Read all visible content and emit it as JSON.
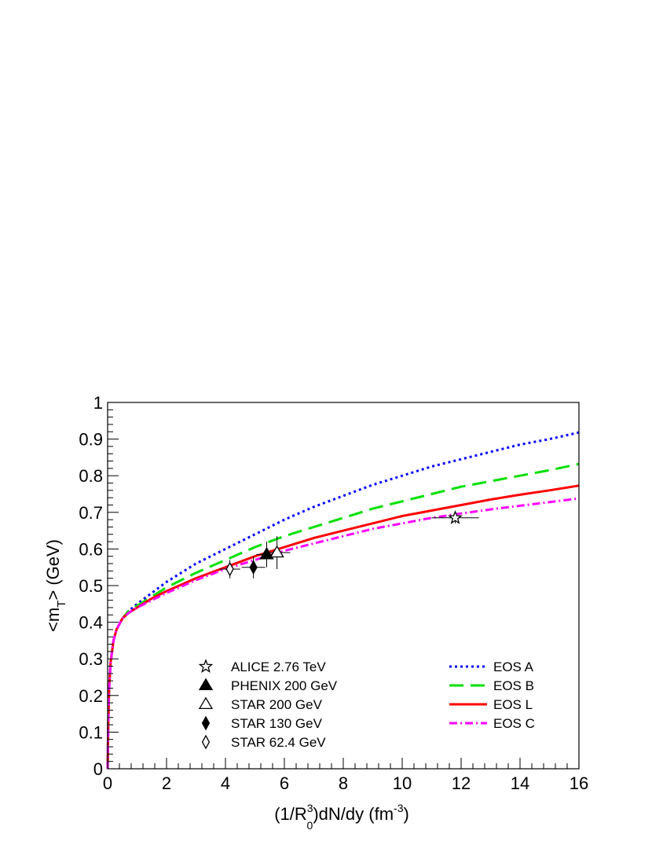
{
  "chart_data": {
    "type": "line",
    "title": "",
    "xlabel_parts": [
      "(1/R",
      "3",
      "0",
      ")dN/dy (fm",
      "-3",
      ")"
    ],
    "ylabel_parts": [
      "<m",
      "T",
      "> (GeV)"
    ],
    "xlim": [
      0,
      16
    ],
    "ylim": [
      0,
      1
    ],
    "x_ticks": [
      {
        "value": 0,
        "label": "0"
      },
      {
        "value": 2,
        "label": "2"
      },
      {
        "value": 4,
        "label": "4"
      },
      {
        "value": 6,
        "label": "6"
      },
      {
        "value": 8,
        "label": "8"
      },
      {
        "value": 10,
        "label": "10"
      },
      {
        "value": 12,
        "label": "12"
      },
      {
        "value": 14,
        "label": "14"
      },
      {
        "value": 16,
        "label": "16"
      }
    ],
    "y_ticks": [
      {
        "value": 0,
        "label": "0"
      },
      {
        "value": 0.1,
        "label": "0.1"
      },
      {
        "value": 0.2,
        "label": "0.2"
      },
      {
        "value": 0.3,
        "label": "0.3"
      },
      {
        "value": 0.4,
        "label": "0.4"
      },
      {
        "value": 0.5,
        "label": "0.5"
      },
      {
        "value": 0.6,
        "label": "0.6"
      },
      {
        "value": 0.7,
        "label": "0.7"
      },
      {
        "value": 0.8,
        "label": "0.8"
      },
      {
        "value": 0.9,
        "label": "0.9"
      },
      {
        "value": 1,
        "label": "1"
      }
    ],
    "grid": false,
    "series": [
      {
        "name": "EOS A",
        "color": "#0000ff",
        "style": "dotted",
        "x": [
          0,
          0.02,
          0.05,
          0.1,
          0.2,
          0.3,
          0.5,
          0.7,
          1,
          1.5,
          2,
          3,
          4,
          5,
          6,
          7,
          8,
          9,
          10,
          11,
          12,
          13,
          14,
          15,
          16
        ],
        "y": [
          0,
          0.12,
          0.22,
          0.29,
          0.35,
          0.38,
          0.41,
          0.43,
          0.45,
          0.48,
          0.51,
          0.56,
          0.6,
          0.64,
          0.68,
          0.715,
          0.745,
          0.775,
          0.8,
          0.825,
          0.845,
          0.865,
          0.885,
          0.9,
          0.918
        ]
      },
      {
        "name": "EOS B",
        "color": "#00e000",
        "style": "dashed",
        "x": [
          0,
          0.02,
          0.05,
          0.1,
          0.2,
          0.3,
          0.5,
          0.7,
          1,
          1.5,
          2,
          3,
          4,
          5,
          6,
          7,
          8,
          9,
          10,
          11,
          12,
          13,
          14,
          15,
          16
        ],
        "y": [
          0,
          0.12,
          0.22,
          0.29,
          0.35,
          0.38,
          0.41,
          0.43,
          0.445,
          0.47,
          0.495,
          0.535,
          0.57,
          0.605,
          0.635,
          0.66,
          0.685,
          0.71,
          0.73,
          0.75,
          0.77,
          0.785,
          0.8,
          0.815,
          0.832
        ]
      },
      {
        "name": "EOS L",
        "color": "#ff0000",
        "style": "solid",
        "x": [
          0,
          0.02,
          0.05,
          0.1,
          0.2,
          0.3,
          0.5,
          0.7,
          1,
          1.5,
          2,
          3,
          4,
          5,
          6,
          7,
          8,
          9,
          10,
          11,
          12,
          13,
          14,
          15,
          16
        ],
        "y": [
          0,
          0.12,
          0.22,
          0.29,
          0.35,
          0.38,
          0.41,
          0.425,
          0.44,
          0.465,
          0.485,
          0.52,
          0.55,
          0.58,
          0.605,
          0.63,
          0.65,
          0.67,
          0.69,
          0.705,
          0.72,
          0.735,
          0.748,
          0.76,
          0.773
        ]
      },
      {
        "name": "EOS C",
        "color": "#ff00ff",
        "style": "dashdot",
        "x": [
          0,
          0.02,
          0.05,
          0.1,
          0.2,
          0.3,
          0.5,
          0.7,
          1,
          1.5,
          2,
          3,
          4,
          5,
          6,
          7,
          8,
          9,
          10,
          11,
          12,
          13,
          14,
          15,
          16
        ],
        "y": [
          0,
          0.12,
          0.22,
          0.29,
          0.35,
          0.38,
          0.41,
          0.425,
          0.44,
          0.46,
          0.48,
          0.515,
          0.545,
          0.57,
          0.595,
          0.615,
          0.635,
          0.655,
          0.67,
          0.685,
          0.697,
          0.708,
          0.718,
          0.728,
          0.738
        ]
      }
    ],
    "points": [
      {
        "name": "ALICE 2.76 TeV",
        "marker": "open-star",
        "x": 11.8,
        "y": 0.685,
        "xerr": 0.8,
        "yerr": 0.015
      },
      {
        "name": "PHENIX 200 GeV",
        "marker": "filled-triangle",
        "x": 5.4,
        "y": 0.585,
        "xerr": 0.35,
        "yerr": 0.035
      },
      {
        "name": "STAR 200 GeV",
        "marker": "open-triangle",
        "x": 5.75,
        "y": 0.59,
        "xerr": 0.45,
        "yerr": 0.045
      },
      {
        "name": "STAR 130 GeV",
        "marker": "filled-diamond",
        "x": 4.95,
        "y": 0.55,
        "xerr": 0.4,
        "yerr": 0.03
      },
      {
        "name": "STAR 62.4 GeV",
        "marker": "open-diamond",
        "x": 4.15,
        "y": 0.545,
        "xerr": 0.35,
        "yerr": 0.025
      }
    ],
    "legend_points_order": [
      "ALICE 2.76 TeV",
      "PHENIX 200 GeV",
      "STAR 200 GeV",
      "STAR 130 GeV",
      "STAR 62.4 GeV"
    ],
    "legend_lines_order": [
      "EOS A",
      "EOS B",
      "EOS L",
      "EOS C"
    ],
    "legend_placement": "bottom"
  }
}
